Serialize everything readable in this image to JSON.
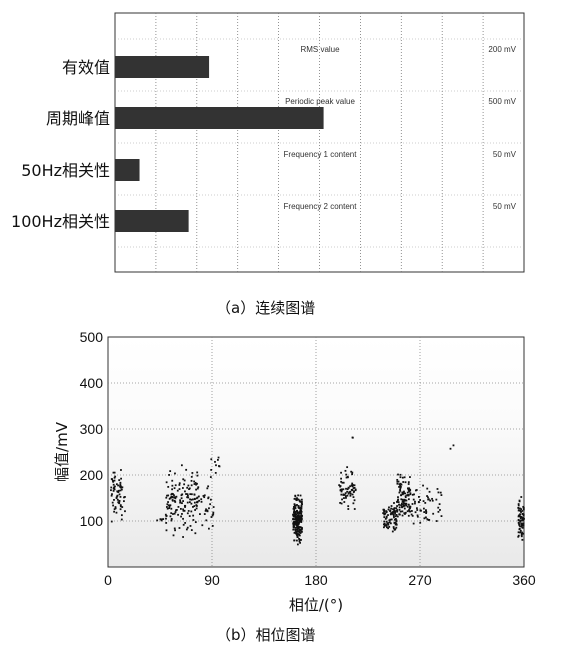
{
  "captions": {
    "a": "（a）连续图谱",
    "b": "（b）相位图谱"
  },
  "chart_data": [
    {
      "type": "bar",
      "orientation": "horizontal",
      "categories": [
        "有效值",
        "周期峰值",
        "50Hz相关性",
        "100Hz相关性"
      ],
      "values": [
        0.23,
        0.51,
        0.06,
        0.18
      ],
      "info": [
        {
          "label": "RMS value",
          "value": "200 mV"
        },
        {
          "label": "Periodic peak value",
          "value": "500 mV"
        },
        {
          "label": "Frequency 1 content",
          "value": "50 mV"
        },
        {
          "label": "Frequency 2 content",
          "value": "50 mV"
        }
      ],
      "xlim": [
        0,
        1
      ],
      "grid": true,
      "colors": {
        "bar": "#333333"
      }
    },
    {
      "type": "scatter",
      "xlabel": "相位/(°)",
      "ylabel": "幅值/mV",
      "xlim": [
        0,
        360
      ],
      "ylim": [
        0,
        500
      ],
      "xticks": [
        0,
        90,
        180,
        270,
        360
      ],
      "yticks": [
        100,
        200,
        300,
        400,
        500
      ],
      "grid": true,
      "clusters": [
        {
          "x": [
            2,
            15
          ],
          "y": [
            80,
            230
          ],
          "n": 70
        },
        {
          "x": [
            40,
            48
          ],
          "y": [
            95,
            110
          ],
          "n": 6
        },
        {
          "x": [
            50,
            78
          ],
          "y": [
            50,
            240
          ],
          "n": 150
        },
        {
          "x": [
            78,
            92
          ],
          "y": [
            50,
            210
          ],
          "n": 30
        },
        {
          "x": [
            88,
            100
          ],
          "y": [
            180,
            260
          ],
          "n": 10
        },
        {
          "x": [
            160,
            168
          ],
          "y": [
            40,
            170
          ],
          "n": 220
        },
        {
          "x": [
            200,
            215
          ],
          "y": [
            110,
            225
          ],
          "n": 70
        },
        {
          "x": [
            210,
            213
          ],
          "y": [
            270,
            290
          ],
          "n": 2
        },
        {
          "x": [
            238,
            250
          ],
          "y": [
            60,
            150
          ],
          "n": 80
        },
        {
          "x": [
            250,
            262
          ],
          "y": [
            70,
            220
          ],
          "n": 110
        },
        {
          "x": [
            262,
            290
          ],
          "y": [
            70,
            200
          ],
          "n": 60
        },
        {
          "x": [
            296,
            300
          ],
          "y": [
            250,
            270
          ],
          "n": 2
        },
        {
          "x": [
            355,
            360
          ],
          "y": [
            40,
            160
          ],
          "n": 70
        }
      ]
    }
  ]
}
